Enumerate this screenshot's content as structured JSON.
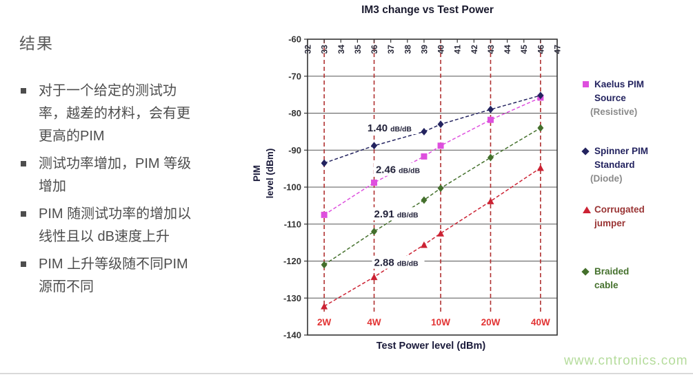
{
  "slide": {
    "left_panel": {
      "title": "结果",
      "bullets": [
        "对于一个给定的测试功\n率，越差的材料，会有更\n更高的PIM",
        "测试功率增加，PIM 等级\n增加",
        "PIM 随测试功率的增加以\n线性且以 dB速度上升",
        "PIM 上升等级随不同PIM\n源而不同"
      ]
    },
    "watermark": "www.cntronics.com"
  },
  "chart_data": {
    "type": "line",
    "title": "IM3 change vs Test Power",
    "xlabel": "Test Power level (dBm)",
    "ylabel": "PIM\nlevel (dBm)",
    "xlim": [
      32,
      47
    ],
    "ylim": [
      -140,
      -60
    ],
    "x_ticks": [
      32,
      33,
      34,
      35,
      36,
      37,
      38,
      39,
      40,
      41,
      42,
      43,
      44,
      45,
      46,
      47
    ],
    "y_ticks": [
      -60,
      -70,
      -80,
      -90,
      -100,
      -110,
      -120,
      -130,
      -140
    ],
    "grid": "horizontal",
    "legend_position": "right",
    "power_markers": [
      {
        "label": "2W",
        "x": 33
      },
      {
        "label": "4W",
        "x": 36
      },
      {
        "label": "10W",
        "x": 40
      },
      {
        "label": "20W",
        "x": 43
      },
      {
        "label": "40W",
        "x": 46
      }
    ],
    "series": [
      {
        "name": "Kaelus PIM Source (Resistive)",
        "marker": "square",
        "color": "#de4fde",
        "x": [
          33,
          36,
          39,
          40,
          43,
          46
        ],
        "y": [
          -107.5,
          -98.8,
          -91.7,
          -88.8,
          -81.8,
          -75.8
        ]
      },
      {
        "name": "Spinner PIM Standard (Diode)",
        "marker": "diamond",
        "color": "#23235f",
        "x": [
          33,
          36,
          39,
          40,
          43,
          46
        ],
        "y": [
          -93.5,
          -88.8,
          -85.0,
          -83.0,
          -79.0,
          -75.2
        ]
      },
      {
        "name": "Corrugated jumper",
        "marker": "triangle",
        "color": "#cc2233",
        "x": [
          33,
          36,
          39,
          40,
          43,
          46
        ],
        "y": [
          -132.2,
          -124.3,
          -115.6,
          -112.5,
          -103.8,
          -94.8
        ]
      },
      {
        "name": "Braided cable",
        "marker": "diamond",
        "color": "#44702c",
        "x": [
          33,
          36,
          39,
          40,
          43,
          46
        ],
        "y": [
          -121.0,
          -112.0,
          -103.5,
          -100.3,
          -92.0,
          -84.0
        ]
      }
    ],
    "annotations": [
      {
        "value": "1.40",
        "unit": "dB/dB",
        "x": 35.6,
        "y": -84.0,
        "series_ref": "Spinner PIM Standard (Diode)"
      },
      {
        "value": "2.46",
        "unit": "dB/dB",
        "x": 36.1,
        "y": -95.3,
        "series_ref": "Kaelus PIM Source (Resistive)"
      },
      {
        "value": "2.91",
        "unit": "dB/dB",
        "x": 36.0,
        "y": -107.3,
        "series_ref": "Braided cable"
      },
      {
        "value": "2.88",
        "unit": "dB/dB",
        "x": 36.0,
        "y": -120.4,
        "series_ref": "Corrugated jumper"
      }
    ]
  },
  "legend": [
    {
      "lines": "Kaelus PIM\nSource",
      "sub": "(Resistive)",
      "marker": "square",
      "marker_color": "#de4fde",
      "text_color": "#23235f"
    },
    {
      "lines": "Spinner PIM\nStandard",
      "sub": "(Diode)",
      "marker": "diamond",
      "marker_color": "#23235f",
      "text_color": "#23235f"
    },
    {
      "lines": "Corrugated\njumper",
      "sub": "",
      "marker": "triangle",
      "marker_color": "#cc2233",
      "text_color": "#993333"
    },
    {
      "lines": "Braided\ncable",
      "sub": "",
      "marker": "diamond",
      "marker_color": "#44702c",
      "text_color": "#44702c"
    }
  ],
  "colors": {
    "dashed_guides": "#b03030",
    "watt_labels": "#e23333",
    "gridlines": "#555555",
    "axis_text": "#333333",
    "watermark": "#b5dc9c"
  }
}
